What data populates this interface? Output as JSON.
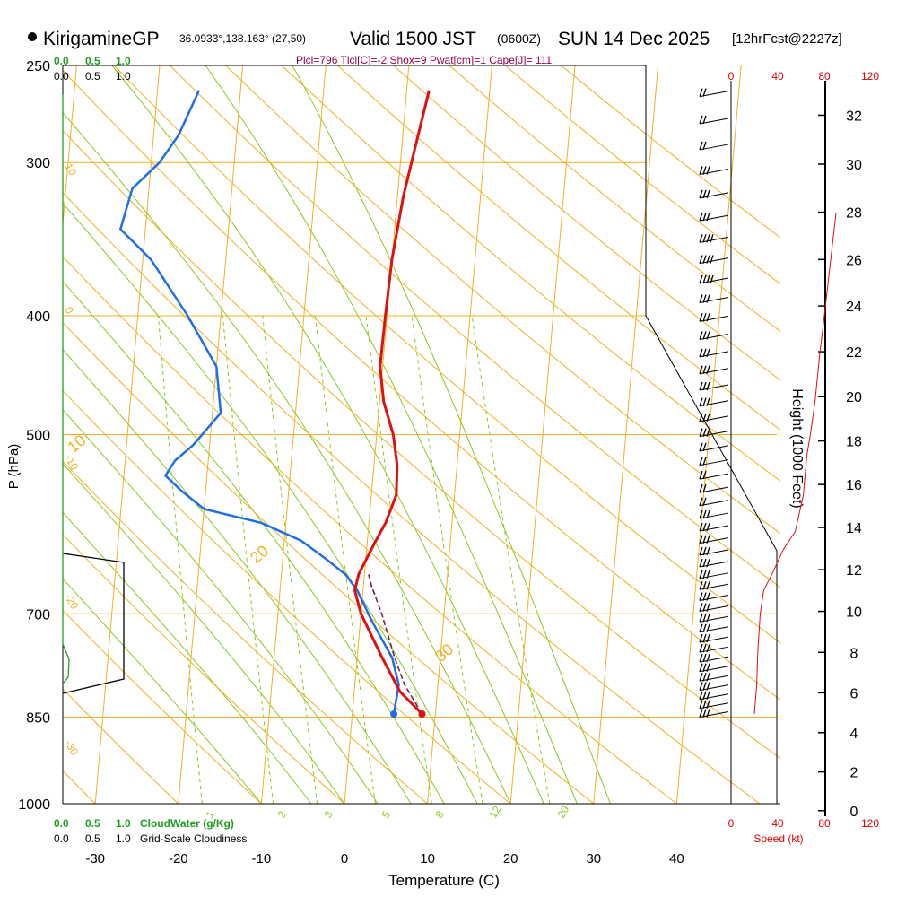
{
  "header": {
    "site": "KirigamineGP",
    "coords": "36.0933°,138.163° (27,50)",
    "valid": "Valid 1500 JST",
    "zulu": "(0600Z)",
    "date": "SUN 14 Dec 2025",
    "forecast": "[12hrFcst@2227z]",
    "indices": "Plcl=796 Tlcl[C]=-2 Shox=9 Pwat[cm]=1 Cape[J]= 111"
  },
  "colors": {
    "isobar": "#f0b020",
    "isotherm": "#f0b020",
    "dry_adiabat": "#f0b020",
    "moist_adiabat": "#8cc820",
    "mixing_ratio": "#8cc820",
    "temperature": "#e01010",
    "dewpoint": "#1e6ee8",
    "parcel": "#7a1f5a",
    "cloud_water": "#20a020",
    "cloudiness": "#000000",
    "wind_speed": "#e01010",
    "red_label": "#e00000",
    "indices": "#9a0050"
  },
  "chart_data": {
    "type": "skew-t",
    "title": "KirigamineGP Valid 1500 JST (0600Z) SUN 14 Dec 2025",
    "xlabel": "Temperature (C)",
    "ylabel": "P (hPa)",
    "right_axis_label": "Height (1000 Feet)",
    "x_ticks": [
      -30,
      -20,
      -10,
      0,
      10,
      20,
      30,
      40
    ],
    "x_tick_labels": [
      "-30",
      "-20",
      "-10",
      "0",
      "10",
      "20",
      "30",
      "40"
    ],
    "p_ticks": [
      250,
      300,
      400,
      500,
      700,
      850,
      1000
    ],
    "p_tick_labels": [
      "250",
      "300",
      "400",
      "500",
      "700",
      "850",
      "1000"
    ],
    "height_ticks": [
      0,
      2,
      4,
      6,
      8,
      10,
      12,
      14,
      16,
      18,
      20,
      22,
      24,
      26,
      28,
      30,
      32
    ],
    "height_tick_labels": [
      "0",
      "2",
      "4",
      "6",
      "8",
      "10",
      "12",
      "14",
      "16",
      "18",
      "20",
      "22",
      "24",
      "26",
      "28",
      "30",
      "32"
    ],
    "dry_adiabat_labels": [
      "-10",
      "0",
      "10",
      "20",
      "30"
    ],
    "dry_adiabat_lower_labels": [
      "10",
      "0",
      "-10",
      "-20",
      "-30"
    ],
    "mixing_ratio_labels": [
      "1",
      "2",
      "3",
      "5",
      "8",
      "12",
      "20"
    ],
    "temperature": {
      "name": "Temperature",
      "points": [
        [
          8.4,
          845
        ],
        [
          5.5,
          810
        ],
        [
          3,
          760
        ],
        [
          0,
          700
        ],
        [
          -1,
          670
        ],
        [
          -0.7,
          650
        ],
        [
          0.8,
          615
        ],
        [
          2,
          590
        ],
        [
          3,
          560
        ],
        [
          2.8,
          530
        ],
        [
          2,
          500
        ],
        [
          0.5,
          470
        ],
        [
          -0.3,
          440
        ],
        [
          -0.2,
          400
        ],
        [
          0,
          360
        ],
        [
          0.7,
          320
        ],
        [
          1.5,
          295
        ],
        [
          2.7,
          262
        ]
      ]
    },
    "dewpoint": {
      "name": "Dewpoint",
      "points": [
        [
          5,
          845
        ],
        [
          5.3,
          800
        ],
        [
          4.2,
          760
        ],
        [
          1.4,
          710
        ],
        [
          -0.7,
          670
        ],
        [
          -2.3,
          650
        ],
        [
          -5,
          630
        ],
        [
          -8,
          610
        ],
        [
          -13,
          590
        ],
        [
          -20,
          575
        ],
        [
          -23,
          555
        ],
        [
          -25,
          540
        ],
        [
          -24,
          525
        ],
        [
          -22,
          510
        ],
        [
          -19,
          480
        ],
        [
          -20,
          440
        ],
        [
          -24,
          400
        ],
        [
          -29,
          360
        ],
        [
          -33,
          340
        ],
        [
          -32,
          315
        ],
        [
          -29,
          300
        ],
        [
          -27,
          285
        ],
        [
          -25,
          262
        ]
      ]
    },
    "parcel": {
      "name": "Parcel",
      "points": [
        [
          8.4,
          845
        ],
        [
          6,
          800
        ],
        [
          4.5,
          760
        ],
        [
          2.5,
          700
        ],
        [
          1,
          665
        ],
        [
          0.5,
          650
        ]
      ]
    },
    "wind_profile": {
      "name": "Wind speed (kt)",
      "points": [
        [
          20,
          845
        ],
        [
          22,
          800
        ],
        [
          23,
          750
        ],
        [
          25,
          700
        ],
        [
          28,
          670
        ],
        [
          35,
          650
        ],
        [
          45,
          620
        ],
        [
          55,
          600
        ],
        [
          62,
          560
        ],
        [
          65,
          520
        ],
        [
          68,
          500
        ],
        [
          72,
          470
        ],
        [
          76,
          430
        ],
        [
          80,
          400
        ],
        [
          84,
          370
        ],
        [
          90,
          330
        ]
      ]
    },
    "wind_barbs_kt": [
      25,
      25,
      25,
      25,
      25,
      25,
      25,
      25,
      25,
      25,
      25,
      25,
      25,
      25,
      25,
      25,
      25,
      25,
      25,
      25,
      20,
      20,
      20,
      20,
      20,
      25,
      25,
      25,
      25,
      25,
      25,
      30,
      30,
      30,
      35,
      35,
      35,
      30,
      25,
      25,
      20,
      20,
      20
    ],
    "cloud_water_scale": [
      "0.0",
      "0.5",
      "1.0"
    ],
    "cloudiness_scale": [
      "0.0",
      "0.5",
      "1.0"
    ],
    "cloud_water_label": "CloudWater (g/Kg)",
    "cloudiness_label": "Grid-Scale Cloudiness",
    "speed_scale": [
      "0",
      "40",
      "80",
      "120"
    ],
    "speed_label": "Speed (kt)"
  }
}
